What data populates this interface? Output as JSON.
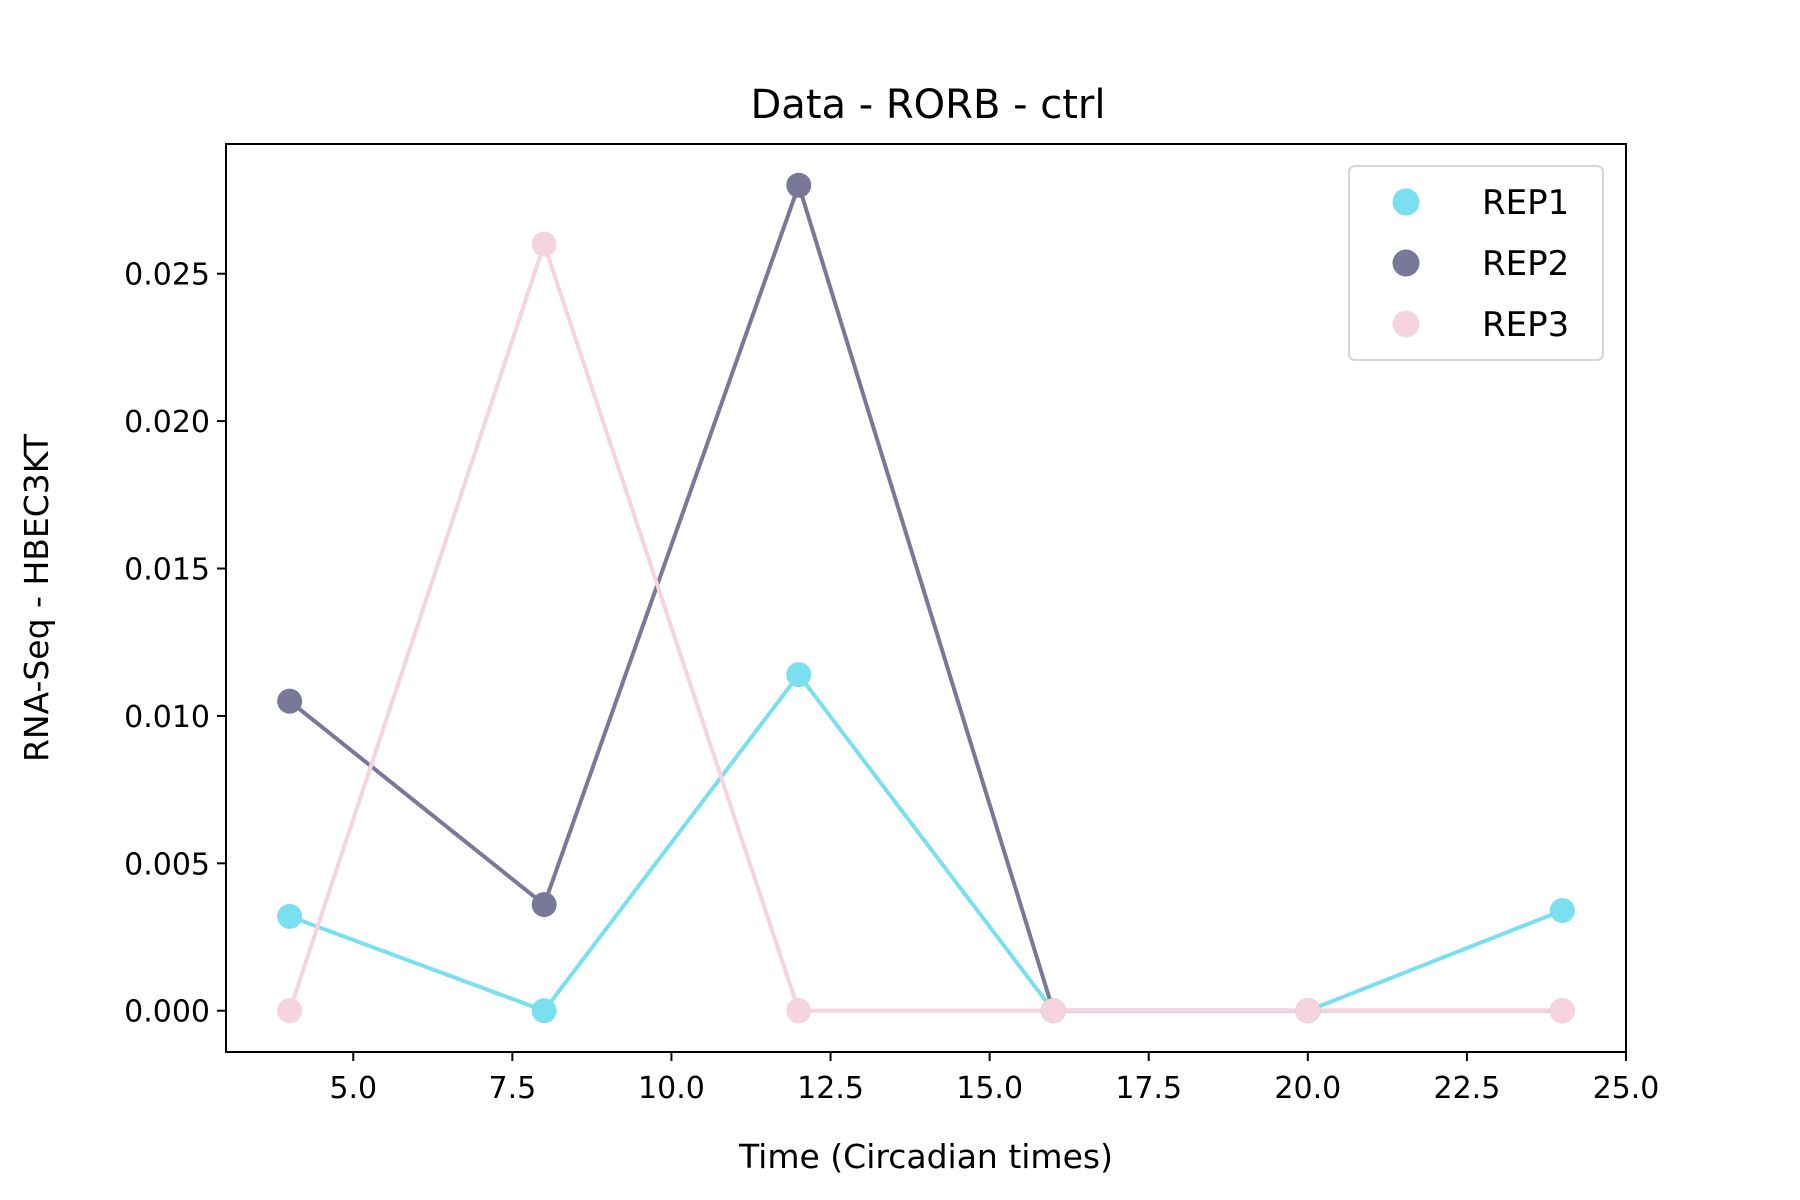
{
  "chart_data": {
    "type": "line",
    "title": "Data - RORB - ctrl",
    "xlabel": "Time (Circadian times)",
    "ylabel": "RNA-Seq - HBEC3KT",
    "xlim": [
      3.0,
      25.0
    ],
    "ylim": [
      -0.0014,
      0.0294
    ],
    "xticks": [
      "5.0",
      "7.5",
      "10.0",
      "12.5",
      "15.0",
      "17.5",
      "20.0",
      "22.5",
      "25.0"
    ],
    "yticks": [
      "0.000",
      "0.005",
      "0.010",
      "0.015",
      "0.020",
      "0.025"
    ],
    "grid": false,
    "legend_position": "top-right",
    "x": [
      4,
      8,
      12,
      16,
      20,
      24
    ],
    "series": [
      {
        "name": "REP1",
        "color": "#7adfee",
        "values": [
          0.0032,
          0.0,
          0.0114,
          0.0,
          0.0,
          0.0034
        ]
      },
      {
        "name": "REP2",
        "color": "#7a7899",
        "values": [
          0.0105,
          0.0036,
          0.028,
          0.0,
          0.0,
          0.0
        ]
      },
      {
        "name": "REP3",
        "color": "#f6d4df",
        "values": [
          0.0,
          0.026,
          0.0,
          0.0,
          0.0,
          0.0
        ]
      }
    ]
  }
}
